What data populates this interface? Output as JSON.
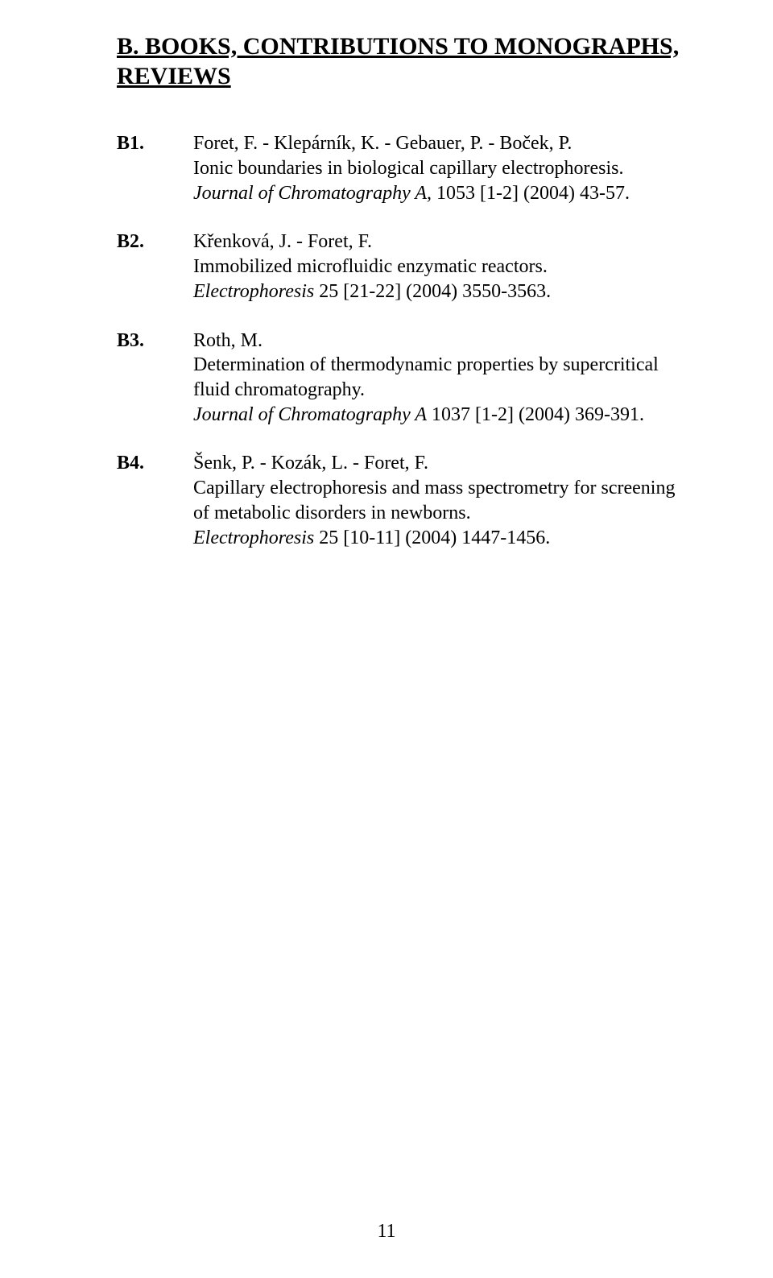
{
  "heading": "B.   BOOKS, CONTRIBUTIONS TO MONOGRAPHS, REVIEWS",
  "entries": [
    {
      "label": "B1.",
      "authors": "Foret, F. - Klepárník, K. - Gebauer, P. - Boček, P.",
      "title": "Ionic boundaries in biological capillary electrophoresis.",
      "journal_italic": "Journal of Chromatography A,",
      "journal_rest": " 1053 [1-2] (2004) 43-57."
    },
    {
      "label": "B2.",
      "authors": "Křenková, J. - Foret, F.",
      "title": "Immobilized microfluidic enzymatic reactors.",
      "journal_italic": "Electrophoresis",
      "journal_rest": " 25 [21-22] (2004) 3550-3563."
    },
    {
      "label": "B3.",
      "authors": "Roth, M.",
      "title": "Determination of thermodynamic properties by supercritical fluid chromatography.",
      "journal_italic": "Journal of Chromatography A",
      "journal_rest": " 1037 [1-2] (2004) 369-391."
    },
    {
      "label": "B4.",
      "authors": "Šenk, P. - Kozák, L. - Foret, F.",
      "title": "Capillary electrophoresis and mass spectrometry for screening of metabolic disorders in newborns.",
      "journal_italic": "Electrophoresis",
      "journal_rest": " 25 [10-11] (2004) 1447-1456."
    }
  ],
  "page_number": "11"
}
